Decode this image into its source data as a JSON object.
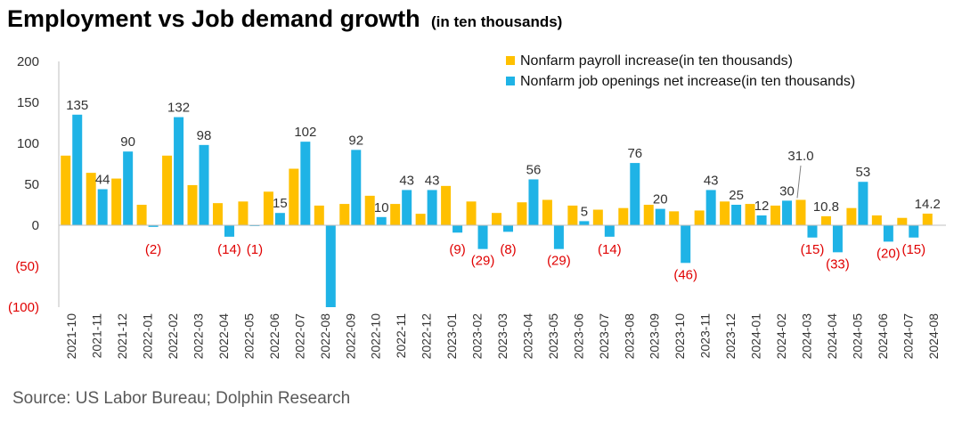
{
  "header": {
    "title": "Employment vs Job demand growth",
    "subtitle": "(in ten thousands)"
  },
  "footer": {
    "source": "Source: US Labor Bureau; Dolphin Research"
  },
  "colors": {
    "payroll": "#FFC000",
    "openings": "#1FB3E6",
    "negative_label": "#E00000"
  },
  "chart_data": {
    "type": "bar",
    "title": "Employment vs Job demand growth",
    "subtitle": "(in ten thousands)",
    "ylim": [
      -100,
      200
    ],
    "y_ticks": [
      200,
      150,
      100,
      50,
      0,
      -50,
      -100
    ],
    "y_tick_labels": [
      "200",
      "150",
      "100",
      "50",
      "0",
      "(50)",
      "(100)"
    ],
    "legend_position": "top-right",
    "grid": false,
    "categories": [
      "2021-10",
      "2021-11",
      "2021-12",
      "2022-01",
      "2022-02",
      "2022-03",
      "2022-04",
      "2022-05",
      "2022-06",
      "2022-07",
      "2022-08",
      "2022-09",
      "2022-10",
      "2022-11",
      "2022-12",
      "2023-01",
      "2023-02",
      "2023-03",
      "2023-04",
      "2023-05",
      "2023-06",
      "2023-07",
      "2023-08",
      "2023-09",
      "2023-10",
      "2023-11",
      "2023-12",
      "2024-01",
      "2024-02",
      "2024-03",
      "2024-04",
      "2024-05",
      "2024-06",
      "2024-07",
      "2024-08"
    ],
    "series": [
      {
        "name": "Nonfarm payroll increase(in ten thousands)",
        "values": [
          85,
          64,
          57,
          25,
          85,
          49,
          27,
          29,
          41,
          69,
          24,
          26,
          36,
          26,
          14,
          48,
          29,
          15,
          28,
          31,
          24,
          19,
          21,
          25,
          17,
          18,
          29,
          26,
          24,
          31.0,
          11,
          21,
          12,
          9,
          14.2
        ]
      },
      {
        "name": "Nonfarm job openings net increase(in ten thousands)",
        "values": [
          135,
          44,
          90,
          -2,
          132,
          98,
          -14,
          -1,
          15,
          102,
          -100,
          92,
          10,
          43,
          43,
          -9,
          -29,
          -8,
          56,
          -29,
          5,
          -14,
          76,
          20,
          -46,
          43,
          25,
          12,
          30,
          -15,
          -33,
          53,
          -20,
          -15,
          null
        ]
      }
    ],
    "data_labels": [
      {
        "category": "2021-10",
        "series": 1,
        "text": "135"
      },
      {
        "category": "2021-11",
        "series": 1,
        "text": "44"
      },
      {
        "category": "2021-12",
        "series": 1,
        "text": "90"
      },
      {
        "category": "2022-01",
        "series": 1,
        "text": "(2)"
      },
      {
        "category": "2022-02",
        "series": 1,
        "text": "132"
      },
      {
        "category": "2022-03",
        "series": 1,
        "text": "98"
      },
      {
        "category": "2022-04",
        "series": 1,
        "text": "(14)"
      },
      {
        "category": "2022-05",
        "series": 1,
        "text": "(1)"
      },
      {
        "category": "2022-06",
        "series": 1,
        "text": "15"
      },
      {
        "category": "2022-07",
        "series": 1,
        "text": "102"
      },
      {
        "category": "2022-09",
        "series": 1,
        "text": "92"
      },
      {
        "category": "2022-10",
        "series": 1,
        "text": "10"
      },
      {
        "category": "2022-11",
        "series": 1,
        "text": "43"
      },
      {
        "category": "2022-12",
        "series": 1,
        "text": "43"
      },
      {
        "category": "2023-01",
        "series": 1,
        "text": "(9)"
      },
      {
        "category": "2023-02",
        "series": 1,
        "text": "(29)"
      },
      {
        "category": "2023-03",
        "series": 1,
        "text": "(8)"
      },
      {
        "category": "2023-04",
        "series": 1,
        "text": "56"
      },
      {
        "category": "2023-05",
        "series": 1,
        "text": "(29)"
      },
      {
        "category": "2023-06",
        "series": 1,
        "text": "5"
      },
      {
        "category": "2023-07",
        "series": 1,
        "text": "(14)"
      },
      {
        "category": "2023-08",
        "series": 1,
        "text": "76"
      },
      {
        "category": "2023-09",
        "series": 1,
        "text": "20"
      },
      {
        "category": "2023-10",
        "series": 1,
        "text": "(46)"
      },
      {
        "category": "2023-11",
        "series": 1,
        "text": "43"
      },
      {
        "category": "2023-12",
        "series": 1,
        "text": "25"
      },
      {
        "category": "2024-01",
        "series": 1,
        "text": "12"
      },
      {
        "category": "2024-02",
        "series": 1,
        "text": "30"
      },
      {
        "category": "2024-03",
        "series": 0,
        "text": "31.0"
      },
      {
        "category": "2024-03",
        "series": 1,
        "text": "(15)"
      },
      {
        "category": "2024-04",
        "series": 0,
        "text": "10.8"
      },
      {
        "category": "2024-04",
        "series": 1,
        "text": "(33)"
      },
      {
        "category": "2024-05",
        "series": 1,
        "text": "53"
      },
      {
        "category": "2024-06",
        "series": 1,
        "text": "(20)"
      },
      {
        "category": "2024-07",
        "series": 1,
        "text": "(15)"
      },
      {
        "category": "2024-08",
        "series": 0,
        "text": "14.2"
      }
    ]
  }
}
